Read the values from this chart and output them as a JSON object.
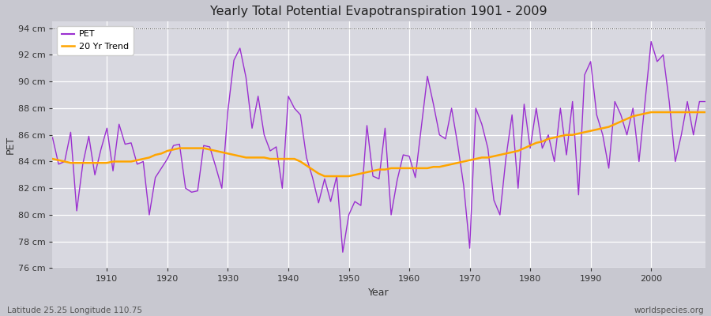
{
  "title": "Yearly Total Potential Evapotranspiration 1901 - 2009",
  "xlabel": "Year",
  "ylabel": "PET",
  "bottom_left_label": "Latitude 25.25 Longitude 110.75",
  "bottom_right_label": "worldspecies.org",
  "pet_color": "#9B30D0",
  "trend_color": "#FFA500",
  "background_color": "#C8C8D0",
  "plot_bg_color": "#D8D8E0",
  "ylim": [
    76,
    94.5
  ],
  "yticks": [
    76,
    78,
    80,
    82,
    84,
    86,
    88,
    90,
    92,
    94
  ],
  "xlim": [
    1901,
    2009
  ],
  "xticks": [
    1910,
    1920,
    1930,
    1940,
    1950,
    1960,
    1970,
    1980,
    1990,
    2000
  ],
  "years": [
    1901,
    1902,
    1903,
    1904,
    1905,
    1906,
    1907,
    1908,
    1909,
    1910,
    1911,
    1912,
    1913,
    1914,
    1915,
    1916,
    1917,
    1918,
    1919,
    1920,
    1921,
    1922,
    1923,
    1924,
    1925,
    1926,
    1927,
    1928,
    1929,
    1930,
    1931,
    1932,
    1933,
    1934,
    1935,
    1936,
    1937,
    1938,
    1939,
    1940,
    1941,
    1942,
    1943,
    1944,
    1945,
    1946,
    1947,
    1948,
    1949,
    1950,
    1951,
    1952,
    1953,
    1954,
    1955,
    1956,
    1957,
    1958,
    1959,
    1960,
    1961,
    1962,
    1963,
    1964,
    1965,
    1966,
    1967,
    1968,
    1969,
    1970,
    1971,
    1972,
    1973,
    1974,
    1975,
    1976,
    1977,
    1978,
    1979,
    1980,
    1981,
    1982,
    1983,
    1984,
    1985,
    1986,
    1987,
    1988,
    1989,
    1990,
    1991,
    1992,
    1993,
    1994,
    1995,
    1996,
    1997,
    1998,
    1999,
    2000,
    2001,
    2002,
    2003,
    2004,
    2005,
    2006,
    2007,
    2008,
    2009
  ],
  "pet_values": [
    85.8,
    83.8,
    84.0,
    86.2,
    80.3,
    83.8,
    85.9,
    83.0,
    84.9,
    86.5,
    83.3,
    86.8,
    85.3,
    85.4,
    83.8,
    84.0,
    80.0,
    82.8,
    83.5,
    84.2,
    85.2,
    85.3,
    82.0,
    81.7,
    81.8,
    85.2,
    85.1,
    83.6,
    82.0,
    87.8,
    91.6,
    92.5,
    90.3,
    86.5,
    88.9,
    86.0,
    84.8,
    85.1,
    82.0,
    88.9,
    88.0,
    87.5,
    84.3,
    82.8,
    80.9,
    82.7,
    81.0,
    82.9,
    77.2,
    80.0,
    81.0,
    80.7,
    86.7,
    82.9,
    82.7,
    86.5,
    80.0,
    82.6,
    84.5,
    84.4,
    82.8,
    86.6,
    90.4,
    88.3,
    86.0,
    85.7,
    88.0,
    85.3,
    82.2,
    77.5,
    88.0,
    86.8,
    85.0,
    81.1,
    80.0,
    84.3,
    87.5,
    82.0,
    88.3,
    85.0,
    88.0,
    85.0,
    86.0,
    84.0,
    88.0,
    84.5,
    88.5,
    81.5,
    90.5,
    91.5,
    87.5,
    86.0,
    83.5,
    88.5,
    87.5,
    86.0,
    88.0,
    84.0,
    88.5,
    93.0,
    91.5,
    92.0,
    88.5,
    84.0,
    86.0,
    88.5,
    86.0,
    88.5,
    88.5
  ],
  "trend_values": [
    84.2,
    84.1,
    84.0,
    83.9,
    83.9,
    83.9,
    83.9,
    83.9,
    83.9,
    83.9,
    84.0,
    84.0,
    84.0,
    84.0,
    84.1,
    84.2,
    84.3,
    84.5,
    84.6,
    84.8,
    84.9,
    85.0,
    85.0,
    85.0,
    85.0,
    85.0,
    84.9,
    84.8,
    84.7,
    84.6,
    84.5,
    84.4,
    84.3,
    84.3,
    84.3,
    84.3,
    84.2,
    84.2,
    84.2,
    84.2,
    84.2,
    84.0,
    83.7,
    83.4,
    83.1,
    82.9,
    82.9,
    82.9,
    82.9,
    82.9,
    83.0,
    83.1,
    83.2,
    83.3,
    83.4,
    83.4,
    83.5,
    83.5,
    83.5,
    83.5,
    83.5,
    83.5,
    83.5,
    83.6,
    83.6,
    83.7,
    83.8,
    83.9,
    84.0,
    84.1,
    84.2,
    84.3,
    84.3,
    84.4,
    84.5,
    84.6,
    84.7,
    84.8,
    85.0,
    85.2,
    85.4,
    85.5,
    85.7,
    85.8,
    85.9,
    86.0,
    86.0,
    86.1,
    86.2,
    86.3,
    86.4,
    86.5,
    86.6,
    86.8,
    87.0,
    87.2,
    87.4,
    87.5,
    87.6,
    87.7,
    87.7,
    87.7,
    87.7,
    87.7,
    87.7,
    87.7,
    87.7,
    87.7,
    87.7
  ]
}
